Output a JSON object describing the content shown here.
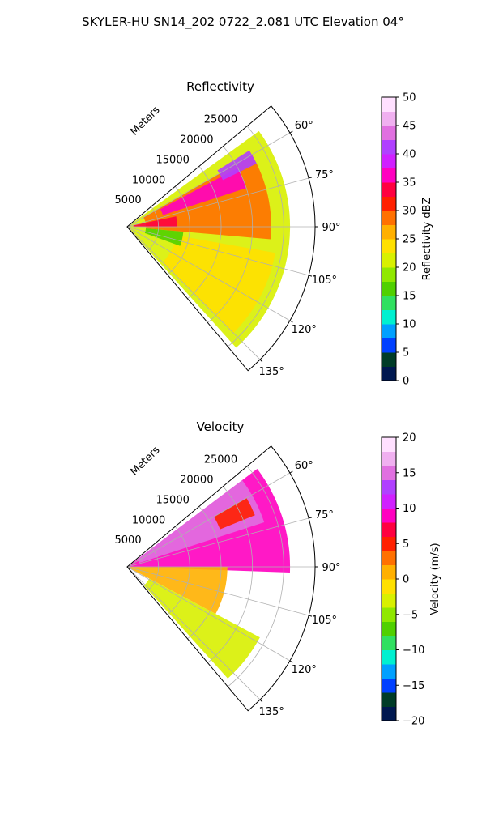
{
  "figure_title": "SKYLER-HU  SN14_202  0722_2.081 UTC Elevation 04°",
  "chart_data": [
    {
      "type": "heatmap",
      "projection": "polar-sector",
      "title": "Reflectivity",
      "range_axis_label": "Meters",
      "range_ticks": [
        5000,
        10000,
        15000,
        20000,
        25000
      ],
      "range_tick_labels": [
        "5000",
        "10000",
        "15000",
        "20000",
        "25000"
      ],
      "range_max": 30000,
      "azimuth_range_deg": [
        50,
        140
      ],
      "azimuth_ticks_deg": [
        60,
        75,
        90,
        105,
        120,
        135
      ],
      "azimuth_tick_labels": [
        "60°",
        "75°",
        "90°",
        "105°",
        "120°",
        "135°"
      ],
      "grid": true,
      "colorbar": {
        "label": "Reflectivity dBZ",
        "range": [
          0,
          50
        ],
        "ticks": [
          0,
          5,
          10,
          15,
          20,
          25,
          30,
          35,
          40,
          45,
          50
        ],
        "tick_labels": [
          "0",
          "5",
          "10",
          "15",
          "20",
          "25",
          "30",
          "35",
          "40",
          "45",
          "50"
        ],
        "colors": [
          "#001850",
          "#003c28",
          "#0040ff",
          "#00a0ff",
          "#00f0d0",
          "#30e060",
          "#50d000",
          "#90e800",
          "#d8f000",
          "#ffe000",
          "#ffb000",
          "#ff7000",
          "#ff2000",
          "#ff0040",
          "#ff00c0",
          "#d020ff",
          "#b040ff",
          "#e070e0",
          "#f0b0f0",
          "#ffe0ff"
        ]
      },
      "echo_regions": [
        {
          "az": [
            54,
            138
          ],
          "range": [
            0,
            26000
          ],
          "value": 21
        },
        {
          "az": [
            60,
            95
          ],
          "range": [
            3000,
            23000
          ],
          "value": 29
        },
        {
          "az": [
            62,
            72
          ],
          "range": [
            6000,
            20000
          ],
          "value": 36
        },
        {
          "az": [
            58,
            64
          ],
          "range": [
            17000,
            23000
          ],
          "value": 42
        },
        {
          "az": [
            78,
            90
          ],
          "range": [
            1000,
            8000
          ],
          "value": 34
        },
        {
          "az": [
            100,
            135
          ],
          "range": [
            8000,
            24000
          ],
          "value": 24
        },
        {
          "az": [
            95,
            110
          ],
          "range": [
            3000,
            9000
          ],
          "value": 17
        }
      ]
    },
    {
      "type": "heatmap",
      "projection": "polar-sector",
      "title": "Velocity",
      "range_axis_label": "Meters",
      "range_ticks": [
        5000,
        10000,
        15000,
        20000,
        25000
      ],
      "range_tick_labels": [
        "5000",
        "10000",
        "15000",
        "20000",
        "25000"
      ],
      "range_max": 30000,
      "azimuth_range_deg": [
        50,
        140
      ],
      "azimuth_ticks_deg": [
        60,
        75,
        90,
        105,
        120,
        135
      ],
      "azimuth_tick_labels": [
        "60°",
        "75°",
        "90°",
        "105°",
        "120°",
        "135°"
      ],
      "grid": true,
      "colorbar": {
        "label": "Velocity (m/s)",
        "range": [
          -20,
          20
        ],
        "ticks": [
          -20,
          -15,
          -10,
          -5,
          0,
          5,
          10,
          15,
          20
        ],
        "tick_labels": [
          "−20",
          "−15",
          "−10",
          "−5",
          "0",
          "5",
          "10",
          "15",
          "20"
        ],
        "colors": [
          "#001850",
          "#003c28",
          "#0040ff",
          "#00a0ff",
          "#00f0d0",
          "#30e060",
          "#50d000",
          "#90e800",
          "#d8f000",
          "#ffe000",
          "#ffb000",
          "#ff7000",
          "#ff2000",
          "#ff0040",
          "#ff00c0",
          "#d020ff",
          "#b040ff",
          "#e070e0",
          "#f0b0f0",
          "#ffe0ff"
        ]
      },
      "echo_regions": [
        {
          "az": [
            53,
            92
          ],
          "range": [
            0,
            26000
          ],
          "value": 9
        },
        {
          "az": [
            53,
            72
          ],
          "range": [
            2000,
            23000
          ],
          "value": 14
        },
        {
          "az": [
            60,
            68
          ],
          "range": [
            16000,
            22000
          ],
          "value": 4
        },
        {
          "az": [
            90,
            118
          ],
          "range": [
            0,
            16000
          ],
          "value": 1
        },
        {
          "az": [
            118,
            138
          ],
          "range": [
            4000,
            24000
          ],
          "value": -3
        }
      ]
    }
  ]
}
